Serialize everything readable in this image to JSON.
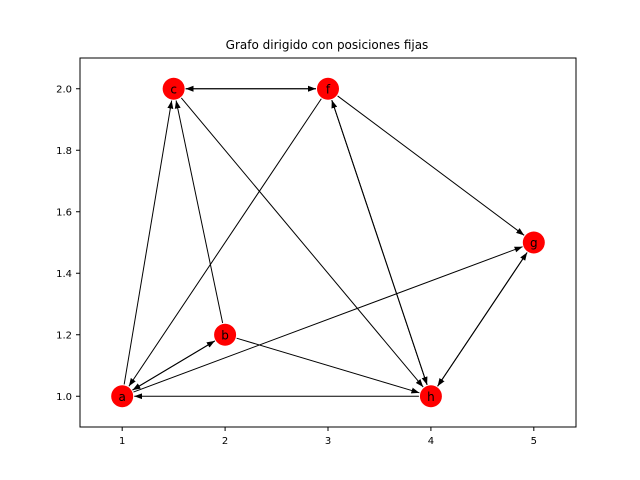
{
  "chart_data": {
    "type": "directed-graph",
    "title": "Grafo dirigido con posiciones fijas",
    "xlim": [
      0.59,
      5.41
    ],
    "ylim": [
      0.9,
      2.1
    ],
    "x_ticks": [
      1,
      2,
      3,
      4,
      5
    ],
    "y_ticks": [
      1.0,
      1.2,
      1.4,
      1.6,
      1.8,
      2.0
    ],
    "x_tick_labels": [
      "1",
      "2",
      "3",
      "4",
      "5"
    ],
    "y_tick_labels": [
      "1.0",
      "1.2",
      "1.4",
      "1.6",
      "1.8",
      "2.0"
    ],
    "grid": false,
    "node_color": "#ff0000",
    "edge_color": "#000000",
    "nodes": [
      {
        "id": "a",
        "label": "a",
        "x": 1.0,
        "y": 1.0
      },
      {
        "id": "b",
        "label": "b",
        "x": 2.0,
        "y": 1.2
      },
      {
        "id": "c",
        "label": "c",
        "x": 1.5,
        "y": 2.0
      },
      {
        "id": "f",
        "label": "f",
        "x": 3.0,
        "y": 2.0
      },
      {
        "id": "g",
        "label": "g",
        "x": 5.0,
        "y": 1.5
      },
      {
        "id": "h",
        "label": "h",
        "x": 4.0,
        "y": 1.0
      }
    ],
    "edges": [
      {
        "source": "a",
        "target": "b"
      },
      {
        "source": "b",
        "target": "a"
      },
      {
        "source": "a",
        "target": "c"
      },
      {
        "source": "a",
        "target": "g"
      },
      {
        "source": "b",
        "target": "c"
      },
      {
        "source": "b",
        "target": "h"
      },
      {
        "source": "c",
        "target": "f"
      },
      {
        "source": "f",
        "target": "c"
      },
      {
        "source": "c",
        "target": "h"
      },
      {
        "source": "f",
        "target": "a"
      },
      {
        "source": "f",
        "target": "g"
      },
      {
        "source": "f",
        "target": "h"
      },
      {
        "source": "h",
        "target": "f"
      },
      {
        "source": "g",
        "target": "h"
      },
      {
        "source": "h",
        "target": "g"
      },
      {
        "source": "h",
        "target": "a"
      }
    ]
  }
}
